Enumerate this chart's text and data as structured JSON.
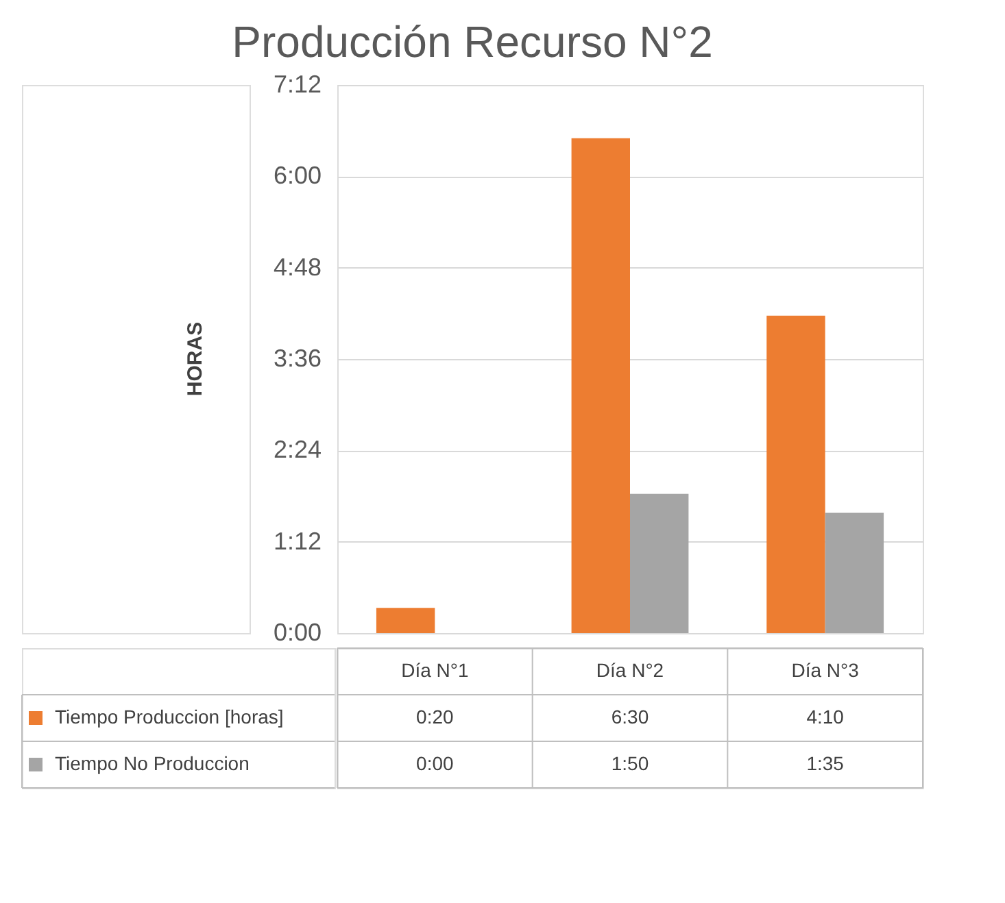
{
  "chart_data": {
    "type": "bar",
    "title": "Producción Recurso N°2",
    "ylabel": "HORAS",
    "categories": [
      "Día N°1",
      "Día N°2",
      "Día N°3"
    ],
    "series": [
      {
        "name": "Tiempo Produccion [horas]",
        "color": "#ed7d31",
        "values": [
          0.33,
          6.5,
          4.17
        ],
        "value_labels": [
          "0:20",
          "6:30",
          "4:10"
        ]
      },
      {
        "name": "Tiempo No Produccion",
        "color": "#a5a5a5",
        "values": [
          0,
          1.83,
          1.58
        ],
        "value_labels": [
          "0:00",
          "1:50",
          "1:35"
        ]
      }
    ],
    "ylim": [
      0,
      7.2
    ],
    "yticks": [
      {
        "value": 0,
        "label": "0:00"
      },
      {
        "value": 1.2,
        "label": "1:12"
      },
      {
        "value": 2.4,
        "label": "2:24"
      },
      {
        "value": 3.6,
        "label": "3:36"
      },
      {
        "value": 4.8,
        "label": "4:48"
      },
      {
        "value": 6,
        "label": "6:00"
      },
      {
        "value": 7.2,
        "label": "7:12"
      }
    ],
    "grid": "y",
    "legend": "bottom"
  }
}
